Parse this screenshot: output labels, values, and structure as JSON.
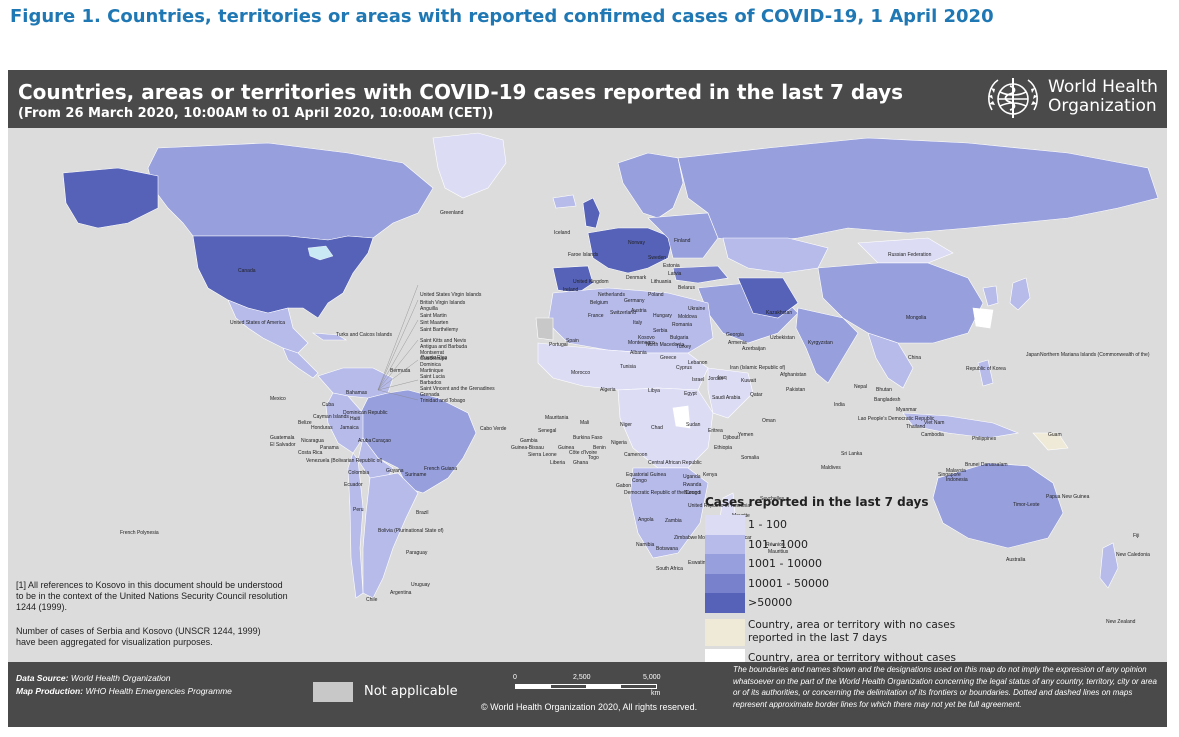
{
  "figure_title": "Figure 1. Countries, territories or areas with reported confirmed cases of COVID-19, 1 April 2020",
  "map_header": {
    "title": "Countries, areas or territories with COVID-19  cases reported in the last 7 days",
    "subtitle": "(From 26 March 2020, 10:00AM  to 01 April 2020, 10:00AM (CET))",
    "org_name_line1": "World Health",
    "org_name_line2": "Organization",
    "logo_icon": "who-emblem-icon"
  },
  "colors": {
    "ocean": "#dcdcdc",
    "band_1_100": "#dcdcf5",
    "band_101_1000": "#b7bbea",
    "band_1001_10000": "#979fdc",
    "band_10001_50000": "#7882cc",
    "band_gt_50000": "#5562b8",
    "no_cases_7days": "#efe9d8",
    "without_cases": "#ffffff",
    "not_applicable": "#c8c8c8",
    "header_bg": "#4a4a4a"
  },
  "country_labels": [
    "Greenland",
    "Canada",
    "United States of America",
    "Russian Federation",
    "Kazakhstan",
    "Mongolia",
    "China",
    "India",
    "Brazil",
    "Australia",
    "Argentina",
    "Peru",
    "Bolivia (Plurinational State of)",
    "Colombia",
    "Chile",
    "Ecuador",
    "Paraguay",
    "Uruguay",
    "Venezuela (Bolivarian Republic of)",
    "Mexico",
    "Cuba",
    "Bermuda",
    "Bahamas",
    "Algeria",
    "Libya",
    "Egypt",
    "Mali",
    "Niger",
    "Chad",
    "Sudan",
    "Ethiopia",
    "Kenya",
    "Somalia",
    "Nigeria",
    "Angola",
    "Zambia",
    "Namibia",
    "Botswana",
    "South Africa",
    "Madagascar",
    "Mozambique",
    "Zimbabwe",
    "United Republic of Tanzania",
    "Democratic Republic of the Congo",
    "Saudi Arabia",
    "Iran (Islamic Republic of)",
    "Iraq",
    "Turkey",
    "Ukraine",
    "Belarus",
    "Finland",
    "Norway",
    "Sweden",
    "Faroe Islands",
    "Iceland",
    "United Kingdom",
    "Ireland",
    "France",
    "Spain",
    "Portugal",
    "Italy",
    "Germany",
    "Poland",
    "Romania",
    "Greece",
    "Morocco",
    "Mauritania",
    "Senegal",
    "Côte d’Ivoire",
    "Ghana",
    "Cameroon",
    "Gabon",
    "Congo",
    "Uganda",
    "Rwanda",
    "Pakistan",
    "Afghanistan",
    "Uzbekistan",
    "Kyrgyzstan",
    "Nepal",
    "Bhutan",
    "Bangladesh",
    "Myanmar",
    "Thailand",
    "Viet Nam",
    "Malaysia",
    "Indonesia",
    "Philippines",
    "Japan",
    "Republic of Korea",
    "Papua New Guinea",
    "New Zealand",
    "New Caledonia",
    "Fiji",
    "French Polynesia",
    "Sri Lanka",
    "Maldives",
    "Seychelles",
    "Mauritius",
    "Réunion",
    "Guam",
    "Timor-Leste",
    "Singapore",
    "Brunei Darussalam",
    "Oman",
    "Yemen",
    "Djibouti",
    "Eritrea",
    "Kuwait",
    "Qatar",
    "Jordan",
    "Israel",
    "Lebanon",
    "Cyprus",
    "Tunisia",
    "Gambia",
    "Guinea-Bissau",
    "Guinea",
    "Liberia",
    "Sierra Leone",
    "Burkina Faso",
    "Benin",
    "Togo",
    "Central African Republic",
    "Equatorial Guinea",
    "Burundi",
    "Eswatini",
    "Mayotte",
    "Guatemala",
    "El Salvador",
    "Honduras",
    "Nicaragua",
    "Costa Rica",
    "Panama",
    "Jamaica",
    "Haiti",
    "Dominican Republic",
    "Puerto Rico",
    "Guyana",
    "Suriname",
    "French Guiana",
    "Cayman Islands",
    "Belize",
    "Aruba",
    "Curaçao",
    "Cabo Verde",
    "Lao People’s Democratic Republic",
    "Cambodia",
    "Georgia",
    "Armenia",
    "Azerbaijan",
    "Lithuania",
    "Latvia",
    "Estonia",
    "Denmark",
    "Netherlands",
    "Belgium",
    "Austria",
    "Switzerland",
    "Hungary",
    "Serbia",
    "Bulgaria",
    "Moldova",
    "Kosovo",
    "North Macedonia",
    "Albania",
    "Montenegro"
  ],
  "caribbean_list": [
    "Puerto Rico",
    "United States Virgin Islands",
    "British Virgin Islands",
    "Anguilla",
    "Saint Martin",
    "Sint Maarten",
    "Saint Barthélemy",
    "Saint Kitts and Nevis",
    "Antigua and Barbuda",
    "Montserrat",
    "Guadeloupe",
    "Dominica",
    "Martinique",
    "Saint Lucia",
    "Barbados",
    "Saint Vincent and the Grenadines",
    "Grenada",
    "Trinidad and Tobago",
    "Turks and Caicos Islands",
    "Northern Mariana Islands (Commonwealth of the)"
  ],
  "legend": {
    "title": "Cases reported in the last 7 days",
    "bands": [
      "1 - 100",
      "101 - 1000",
      "1001 - 10000",
      "10001 - 50000",
      ">50000"
    ],
    "no_cases_label": "Country, area or territory with no cases reported in the last 7 days",
    "without_cases_label": "Country, area or territory without cases"
  },
  "notes": {
    "kosovo_note": "[1] All references to Kosovo in this document should be understood to be in the context of the United Nations Security Council resolution 1244 (1999).",
    "aggregation_note": "Number of cases of Serbia and Kosovo (UNSCR 1244, 1999) have been aggregated for visualization purposes."
  },
  "footer": {
    "data_source_label": "Data Source:",
    "data_source_value": "World Health Organization",
    "map_production_label": "Map Production:",
    "map_production_value": "WHO Health Emergencies Programme",
    "not_applicable_label": "Not applicable",
    "scale_ticks": [
      "0",
      "2,500",
      "5,000"
    ],
    "scale_unit": "km",
    "copyright": "© World Health Organization  2020,  All rights reserved.",
    "disclaimer": "The boundaries and names shown and the designations used on this map do not imply the expression of any opinion whatsoever on the part of the World Health Organization concerning the legal status of any country, territory, city or area or of its authorities, or concerning the delimitation of its frontiers or boundaries. Dotted and dashed lines on maps represent approximate border lines for which there may not yet be full agreement."
  }
}
